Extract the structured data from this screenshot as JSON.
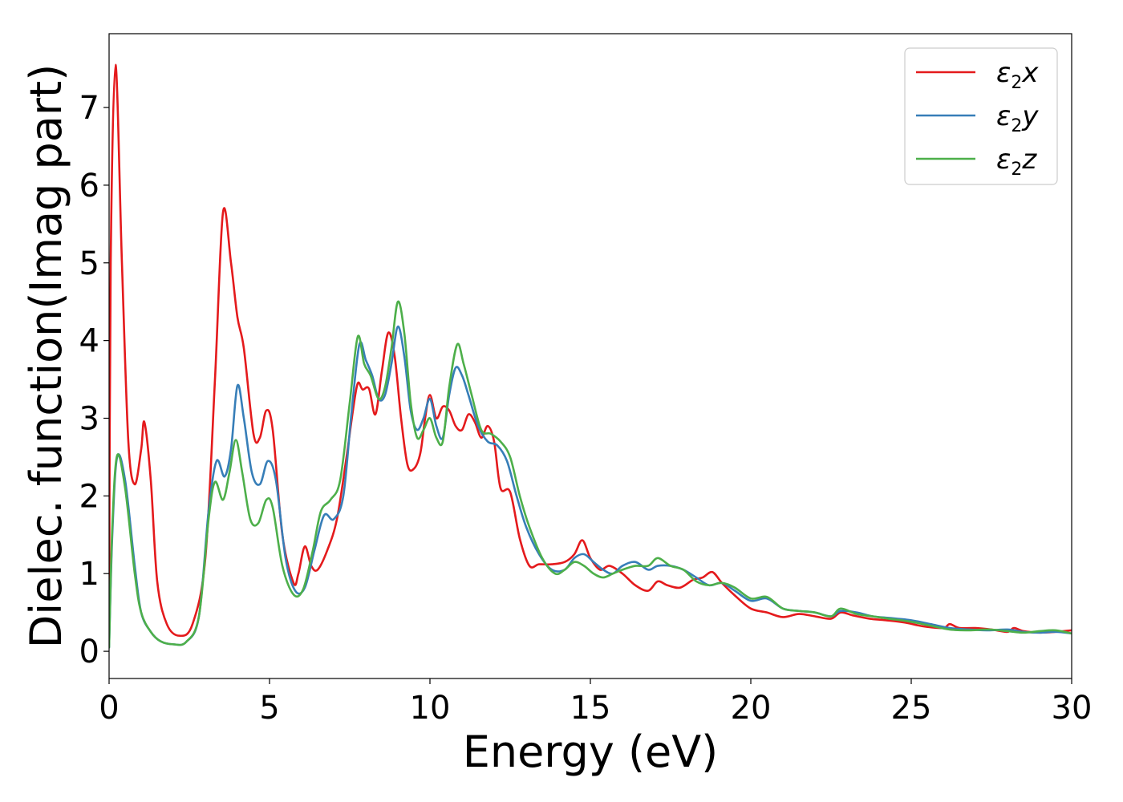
{
  "chart_data": {
    "type": "line",
    "title": "",
    "xlabel": "Energy (eV)",
    "ylabel": "Dielec. function(Imag part)",
    "xlim": [
      0,
      30
    ],
    "ylim": [
      -0.35,
      7.95
    ],
    "xticks": [
      0,
      5,
      10,
      15,
      20,
      25,
      30
    ],
    "yticks": [
      0,
      1,
      2,
      3,
      4,
      5,
      6,
      7
    ],
    "grid": false,
    "legend_position": "top-right",
    "series": [
      {
        "name": "ε2x",
        "legend": {
          "base": "ε",
          "sub": "2",
          "var": "x"
        },
        "color": "#e41a1c",
        "x": [
          0,
          0.05,
          0.2,
          0.4,
          0.6,
          0.8,
          1.0,
          1.1,
          1.3,
          1.5,
          1.8,
          2.2,
          2.6,
          3.0,
          3.3,
          3.55,
          3.8,
          4.0,
          4.2,
          4.5,
          4.7,
          4.9,
          5.1,
          5.4,
          5.75,
          5.9,
          6.1,
          6.3,
          6.5,
          6.8,
          7.1,
          7.4,
          7.6,
          7.75,
          7.9,
          8.1,
          8.3,
          8.5,
          8.7,
          8.9,
          9.1,
          9.3,
          9.5,
          9.7,
          9.85,
          10.0,
          10.2,
          10.4,
          10.6,
          10.8,
          11.0,
          11.2,
          11.4,
          11.6,
          11.8,
          12.0,
          12.2,
          12.5,
          12.8,
          13.1,
          13.4,
          13.8,
          14.2,
          14.5,
          14.75,
          15.0,
          15.3,
          15.6,
          16.0,
          16.4,
          16.8,
          17.1,
          17.4,
          17.8,
          18.2,
          18.5,
          18.8,
          19.1,
          19.5,
          20.0,
          20.5,
          21.0,
          21.5,
          22.0,
          22.5,
          22.8,
          23.2,
          23.7,
          24.2,
          24.8,
          25.4,
          26.0,
          26.2,
          26.5,
          27.0,
          27.5,
          28.0,
          28.2,
          28.5,
          29.0,
          29.5,
          30.0
        ],
        "y": [
          0.15,
          5.0,
          7.55,
          5.0,
          2.7,
          2.15,
          2.6,
          2.95,
          2.2,
          0.9,
          0.35,
          0.2,
          0.35,
          1.2,
          3.5,
          5.65,
          5.0,
          4.3,
          3.9,
          2.8,
          2.75,
          3.1,
          2.85,
          1.5,
          0.88,
          1.0,
          1.35,
          1.1,
          1.05,
          1.3,
          1.7,
          2.5,
          3.1,
          3.45,
          3.37,
          3.38,
          3.05,
          3.6,
          4.1,
          3.8,
          3.0,
          2.4,
          2.35,
          2.55,
          3.0,
          3.3,
          3.0,
          3.15,
          3.1,
          2.9,
          2.85,
          3.05,
          2.95,
          2.75,
          2.9,
          2.7,
          2.1,
          2.05,
          1.45,
          1.1,
          1.12,
          1.12,
          1.15,
          1.25,
          1.43,
          1.2,
          1.05,
          1.1,
          1.0,
          0.85,
          0.78,
          0.9,
          0.85,
          0.82,
          0.92,
          0.95,
          1.02,
          0.88,
          0.72,
          0.55,
          0.5,
          0.44,
          0.48,
          0.45,
          0.42,
          0.5,
          0.46,
          0.42,
          0.4,
          0.37,
          0.32,
          0.3,
          0.35,
          0.3,
          0.3,
          0.28,
          0.25,
          0.3,
          0.26,
          0.24,
          0.25,
          0.27
        ]
      },
      {
        "name": "ε2y",
        "legend": {
          "base": "ε",
          "sub": "2",
          "var": "y"
        },
        "color": "#377eb8",
        "x": [
          0,
          0.1,
          0.25,
          0.5,
          0.8,
          1.0,
          1.3,
          1.6,
          2.0,
          2.4,
          2.8,
          3.1,
          3.35,
          3.6,
          3.8,
          4.0,
          4.2,
          4.45,
          4.7,
          4.95,
          5.2,
          5.5,
          5.8,
          6.1,
          6.4,
          6.7,
          7.0,
          7.3,
          7.55,
          7.8,
          8.0,
          8.2,
          8.4,
          8.6,
          8.8,
          9.0,
          9.2,
          9.4,
          9.6,
          9.8,
          10.0,
          10.2,
          10.4,
          10.6,
          10.8,
          11.0,
          11.2,
          11.5,
          11.8,
          12.1,
          12.4,
          12.7,
          13.0,
          13.4,
          13.8,
          14.2,
          14.5,
          14.8,
          15.1,
          15.4,
          15.7,
          16.0,
          16.4,
          16.8,
          17.1,
          17.5,
          17.9,
          18.3,
          18.7,
          19.1,
          19.5,
          20.0,
          20.5,
          21.0,
          21.5,
          22.0,
          22.5,
          22.8,
          23.3,
          23.8,
          24.3,
          25.0,
          25.6,
          26.2,
          26.8,
          27.4,
          28.0,
          28.5,
          29.0,
          29.5,
          30.0
        ],
        "y": [
          0.05,
          1.5,
          2.5,
          2.2,
          1.1,
          0.5,
          0.25,
          0.13,
          0.09,
          0.12,
          0.45,
          1.8,
          2.45,
          2.25,
          2.6,
          3.42,
          3.0,
          2.3,
          2.15,
          2.45,
          2.2,
          1.2,
          0.78,
          0.82,
          1.3,
          1.75,
          1.7,
          2.0,
          3.05,
          3.95,
          3.75,
          3.55,
          3.25,
          3.3,
          3.7,
          4.18,
          3.8,
          3.1,
          2.85,
          3.0,
          3.25,
          2.9,
          2.75,
          3.3,
          3.65,
          3.55,
          3.3,
          2.9,
          2.7,
          2.65,
          2.45,
          2.0,
          1.6,
          1.25,
          1.05,
          1.05,
          1.2,
          1.25,
          1.15,
          1.05,
          1.0,
          1.1,
          1.15,
          1.05,
          1.1,
          1.1,
          1.05,
          0.95,
          0.85,
          0.88,
          0.78,
          0.65,
          0.68,
          0.55,
          0.52,
          0.5,
          0.45,
          0.52,
          0.5,
          0.45,
          0.43,
          0.4,
          0.35,
          0.3,
          0.28,
          0.27,
          0.28,
          0.25,
          0.24,
          0.25,
          0.23
        ]
      },
      {
        "name": "ε2z",
        "legend": {
          "base": "ε",
          "sub": "2",
          "var": "z"
        },
        "color": "#4daf4a",
        "x": [
          0,
          0.1,
          0.25,
          0.5,
          0.8,
          1.0,
          1.3,
          1.6,
          2.0,
          2.4,
          2.8,
          3.1,
          3.3,
          3.55,
          3.75,
          3.95,
          4.15,
          4.4,
          4.65,
          4.9,
          5.1,
          5.4,
          5.75,
          6.05,
          6.35,
          6.6,
          6.9,
          7.2,
          7.5,
          7.75,
          7.95,
          8.15,
          8.4,
          8.6,
          8.8,
          9.0,
          9.2,
          9.4,
          9.6,
          9.8,
          10.0,
          10.2,
          10.4,
          10.6,
          10.85,
          11.05,
          11.3,
          11.6,
          11.9,
          12.2,
          12.5,
          12.8,
          13.1,
          13.5,
          13.9,
          14.2,
          14.5,
          14.8,
          15.1,
          15.4,
          15.7,
          16.0,
          16.4,
          16.8,
          17.1,
          17.5,
          17.9,
          18.3,
          18.7,
          19.1,
          19.5,
          20.0,
          20.5,
          21.0,
          21.5,
          22.0,
          22.5,
          22.8,
          23.3,
          23.8,
          24.3,
          25.0,
          25.6,
          26.2,
          26.8,
          27.4,
          28.0,
          28.5,
          29.0,
          29.5,
          30.0
        ],
        "y": [
          0.05,
          1.6,
          2.52,
          2.1,
          1.0,
          0.5,
          0.25,
          0.13,
          0.09,
          0.12,
          0.45,
          1.7,
          2.18,
          1.95,
          2.3,
          2.72,
          2.3,
          1.7,
          1.65,
          1.95,
          1.85,
          1.1,
          0.73,
          0.8,
          1.3,
          1.8,
          1.95,
          2.2,
          3.2,
          4.05,
          3.7,
          3.55,
          3.25,
          3.4,
          3.9,
          4.5,
          4.1,
          3.2,
          2.75,
          2.85,
          3.0,
          2.75,
          2.7,
          3.4,
          3.95,
          3.7,
          3.3,
          2.85,
          2.8,
          2.7,
          2.5,
          2.0,
          1.6,
          1.2,
          1.0,
          1.05,
          1.15,
          1.1,
          1.0,
          0.95,
          1.0,
          1.05,
          1.1,
          1.1,
          1.2,
          1.1,
          1.05,
          0.9,
          0.85,
          0.88,
          0.82,
          0.68,
          0.7,
          0.55,
          0.52,
          0.5,
          0.45,
          0.55,
          0.48,
          0.45,
          0.42,
          0.38,
          0.33,
          0.28,
          0.27,
          0.28,
          0.26,
          0.24,
          0.26,
          0.27,
          0.23
        ]
      }
    ]
  }
}
